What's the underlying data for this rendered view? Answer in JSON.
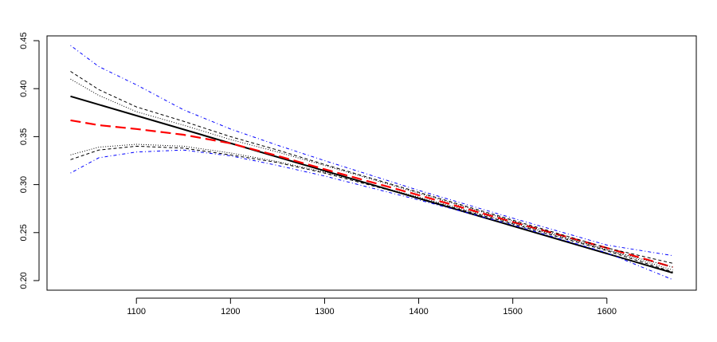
{
  "chart_data": {
    "type": "line",
    "title": "",
    "xlabel": "",
    "ylabel": "",
    "xlim": [
      1005,
      1695
    ],
    "ylim": [
      0.19,
      0.455
    ],
    "xticks": [
      1100,
      1200,
      1300,
      1400,
      1500,
      1600
    ],
    "yticks": [
      0.2,
      0.25,
      0.3,
      0.35,
      0.4,
      0.45
    ],
    "ytick_labels": [
      "0.20",
      "0.25",
      "0.30",
      "0.35",
      "0.40",
      "0.45"
    ],
    "grid": false,
    "legend": "none",
    "series": [
      {
        "color": "#000000",
        "style": "solid",
        "width": 2,
        "x": [
          1030,
          1670
        ],
        "y": [
          0.392,
          0.208
        ]
      },
      {
        "color": "#ff0000",
        "style": "long-dash",
        "width": 2.2,
        "x": [
          1030,
          1060,
          1100,
          1150,
          1200,
          1250,
          1300,
          1400,
          1500,
          1600,
          1670
        ],
        "y": [
          0.367,
          0.362,
          0.358,
          0.352,
          0.343,
          0.33,
          0.316,
          0.289,
          0.261,
          0.234,
          0.214
        ]
      },
      {
        "color": "#000000",
        "style": "dashed",
        "width": 1,
        "x": [
          1030,
          1060,
          1100,
          1150,
          1200,
          1250,
          1300,
          1400,
          1500,
          1600,
          1670
        ],
        "y": [
          0.418,
          0.399,
          0.381,
          0.366,
          0.35,
          0.336,
          0.321,
          0.292,
          0.263,
          0.234,
          0.218
        ]
      },
      {
        "color": "#000000",
        "style": "dashed",
        "width": 1,
        "x": [
          1030,
          1060,
          1100,
          1150,
          1200,
          1250,
          1300,
          1400,
          1500,
          1600,
          1670
        ],
        "y": [
          0.326,
          0.336,
          0.34,
          0.338,
          0.331,
          0.323,
          0.312,
          0.286,
          0.259,
          0.231,
          0.209
        ]
      },
      {
        "color": "#000000",
        "style": "dotted",
        "width": 1,
        "x": [
          1030,
          1060,
          1100,
          1150,
          1200,
          1250,
          1300,
          1400,
          1500,
          1600,
          1670
        ],
        "y": [
          0.41,
          0.393,
          0.376,
          0.362,
          0.347,
          0.334,
          0.32,
          0.291,
          0.262,
          0.232,
          0.214
        ]
      },
      {
        "color": "#000000",
        "style": "dotted",
        "width": 1,
        "x": [
          1030,
          1060,
          1100,
          1150,
          1200,
          1250,
          1300,
          1400,
          1500,
          1600,
          1670
        ],
        "y": [
          0.331,
          0.339,
          0.342,
          0.34,
          0.333,
          0.324,
          0.313,
          0.287,
          0.26,
          0.232,
          0.211
        ]
      },
      {
        "color": "#0000ff",
        "style": "dash-dot",
        "width": 1,
        "x": [
          1030,
          1060,
          1100,
          1150,
          1200,
          1250,
          1300,
          1400,
          1500,
          1600,
          1670
        ],
        "y": [
          0.445,
          0.423,
          0.404,
          0.378,
          0.358,
          0.341,
          0.325,
          0.294,
          0.265,
          0.237,
          0.226
        ]
      },
      {
        "color": "#0000ff",
        "style": "dash-dot",
        "width": 1,
        "x": [
          1030,
          1060,
          1100,
          1150,
          1200,
          1250,
          1300,
          1400,
          1500,
          1600,
          1670
        ],
        "y": [
          0.312,
          0.328,
          0.334,
          0.336,
          0.33,
          0.32,
          0.309,
          0.284,
          0.258,
          0.229,
          0.201
        ]
      }
    ]
  }
}
